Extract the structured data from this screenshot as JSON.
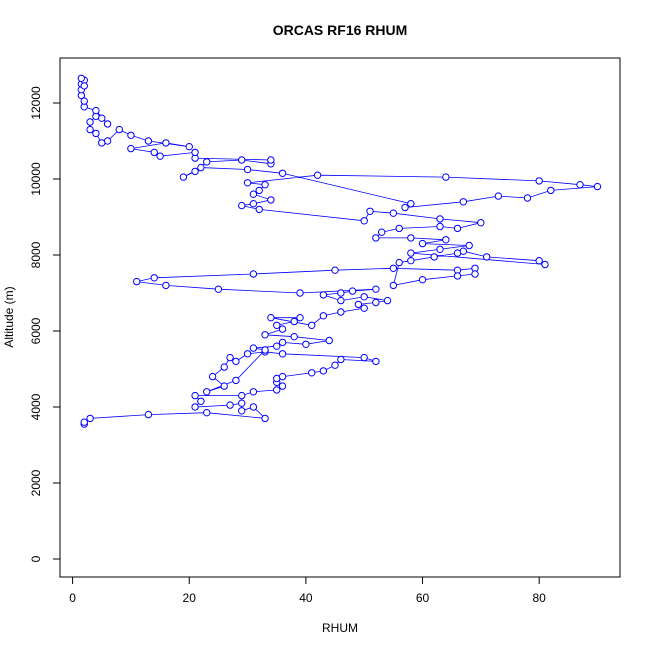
{
  "chart_data": {
    "type": "line",
    "title": "ORCAS RF16 RHUM",
    "x_label": "RHUM",
    "y_label": "Altitude (m)",
    "color": "#0000ff",
    "x": [
      2,
      2,
      3,
      13,
      23,
      33,
      31,
      29,
      29,
      27,
      21,
      22,
      21,
      29,
      31,
      35,
      36,
      35,
      35,
      36,
      41,
      43,
      45,
      46,
      52,
      50,
      36,
      33,
      30,
      28,
      27,
      26,
      24,
      26,
      23,
      28,
      33,
      31,
      35,
      36,
      40,
      44,
      38,
      33,
      36,
      35,
      38,
      39,
      34,
      41,
      43,
      46,
      50,
      49,
      52,
      54,
      50,
      46,
      43,
      46,
      48,
      52,
      39,
      25,
      16,
      11,
      14,
      31,
      45,
      55,
      66,
      69,
      69,
      66,
      60,
      55,
      56,
      58,
      62,
      66,
      67,
      71,
      80,
      81,
      58,
      63,
      68,
      60,
      64,
      58,
      52,
      53,
      56,
      63,
      66,
      70,
      63,
      55,
      51,
      50,
      32,
      29,
      31,
      34,
      31,
      32,
      33,
      30,
      42,
      64,
      80,
      87,
      90,
      82,
      78,
      73,
      67,
      57,
      58,
      36,
      30,
      22,
      19,
      21,
      23,
      29,
      34,
      34,
      21,
      21,
      15,
      14,
      10,
      16,
      20,
      13,
      10,
      8,
      6,
      5,
      4,
      3,
      3,
      4,
      5,
      6,
      4,
      2,
      2,
      1.5,
      1.5,
      1.5,
      2,
      1.5,
      2
    ],
    "values": [
      3550,
      3600,
      3700,
      3800,
      3850,
      3700,
      4000,
      3900,
      4100,
      4050,
      4000,
      4150,
      4300,
      4300,
      4400,
      4450,
      4550,
      4650,
      4750,
      4800,
      4900,
      4950,
      5100,
      5250,
      5200,
      5300,
      5400,
      5450,
      5400,
      5200,
      5300,
      5050,
      4800,
      4550,
      4400,
      4700,
      5500,
      5550,
      5600,
      5700,
      5650,
      5750,
      5850,
      5900,
      6050,
      6150,
      6250,
      6350,
      6350,
      6150,
      6400,
      6500,
      6600,
      6700,
      6750,
      6800,
      6900,
      6800,
      6950,
      7000,
      7050,
      7100,
      7000,
      7100,
      7200,
      7300,
      7400,
      7500,
      7600,
      7650,
      7600,
      7650,
      7500,
      7450,
      7350,
      7200,
      7800,
      7850,
      7950,
      8050,
      8100,
      7950,
      7850,
      7750,
      8050,
      8150,
      8250,
      8300,
      8400,
      8450,
      8450,
      8600,
      8700,
      8750,
      8700,
      8850,
      8950,
      9100,
      9150,
      8900,
      9200,
      9300,
      9350,
      9450,
      9600,
      9700,
      9850,
      9900,
      10100,
      10050,
      9950,
      9850,
      9800,
      9700,
      9500,
      9550,
      9400,
      9250,
      9350,
      10150,
      10250,
      10300,
      10050,
      10200,
      10450,
      10500,
      10400,
      10500,
      10550,
      10700,
      10600,
      10700,
      10800,
      10950,
      10850,
      11000,
      11150,
      11300,
      11000,
      10950,
      11200,
      11300,
      11500,
      11650,
      11600,
      11450,
      11800,
      11900,
      12050,
      12200,
      12350,
      12500,
      12600,
      12650,
      12450
    ],
    "xlim": [
      -2.16,
      93.86
    ],
    "ylim": [
      -474,
      13184
    ],
    "xticks": [
      0,
      20,
      40,
      60,
      80
    ],
    "yticks": [
      0,
      2000,
      4000,
      6000,
      8000,
      10000,
      12000
    ]
  }
}
